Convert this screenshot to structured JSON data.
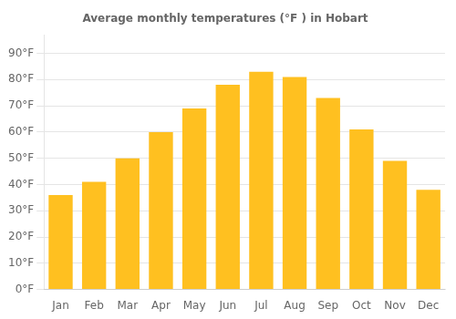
{
  "chart_data": {
    "type": "bar",
    "title": "Average monthly temperatures (°F ) in Hobart",
    "categories": [
      "Jan",
      "Feb",
      "Mar",
      "Apr",
      "May",
      "Jun",
      "Jul",
      "Aug",
      "Sep",
      "Oct",
      "Nov",
      "Dec"
    ],
    "values": [
      36,
      41,
      50,
      60,
      69,
      78,
      83,
      81,
      73,
      61,
      49,
      38
    ],
    "color": "#FFC020",
    "ylim": [
      0,
      97
    ],
    "yticks": [
      {
        "value": 0,
        "label": "0°F"
      },
      {
        "value": 10,
        "label": "10°F"
      },
      {
        "value": 20,
        "label": "20°F"
      },
      {
        "value": 30,
        "label": "30°F"
      },
      {
        "value": 40,
        "label": "40°F"
      },
      {
        "value": 50,
        "label": "50°F"
      },
      {
        "value": 60,
        "label": "60°F"
      },
      {
        "value": 70,
        "label": "70°F"
      },
      {
        "value": 80,
        "label": "80°F"
      },
      {
        "value": 90,
        "label": "90°F"
      }
    ],
    "grid": true
  }
}
